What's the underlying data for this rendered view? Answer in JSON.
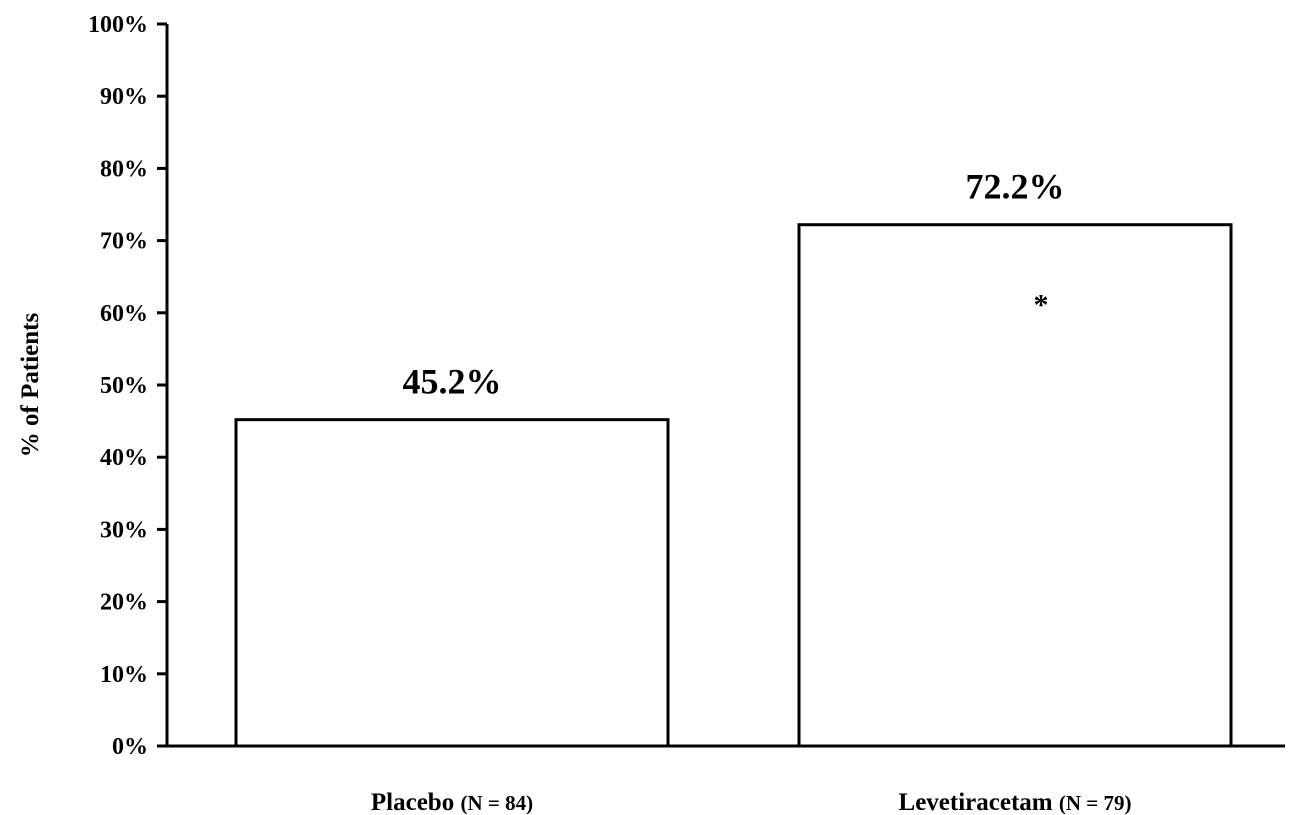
{
  "chart_data": {
    "type": "bar",
    "ylabel": "% of Patients",
    "ylim": [
      0,
      100
    ],
    "yticks": [
      "0%",
      "10%",
      "20%",
      "30%",
      "40%",
      "50%",
      "60%",
      "70%",
      "80%",
      "90%",
      "100%"
    ],
    "categories": [
      {
        "name": "Placebo",
        "n": "(N = 84)"
      },
      {
        "name": "Levetiracetam",
        "n": "(N = 79)"
      }
    ],
    "values": [
      45.2,
      72.2
    ],
    "data_labels": [
      "45.2%",
      "72.2%"
    ],
    "annotations": [
      {
        "category": "Levetiracetam",
        "text": "*"
      }
    ],
    "grid": false,
    "bar_fill": "#ffffff",
    "bar_stroke": "#000000"
  }
}
